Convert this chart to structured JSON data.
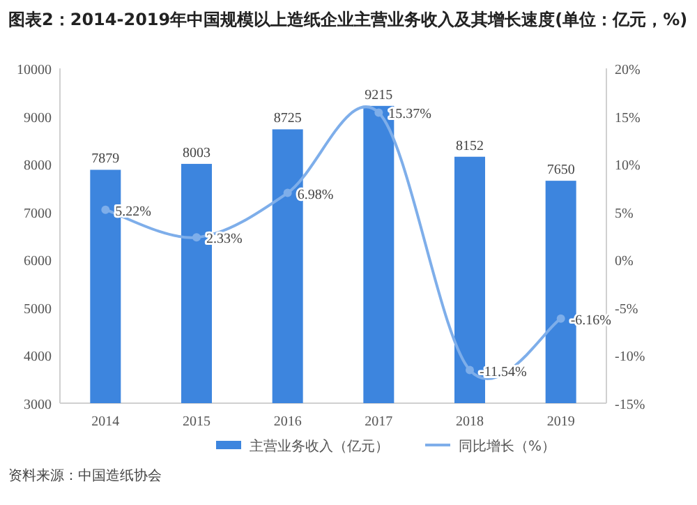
{
  "chart_data": {
    "type": "bar",
    "title": "图表2：2014-2019年中国规模以上造纸企业主营业务收入及其增长速度(单位：亿元，%)",
    "categories": [
      "2014",
      "2015",
      "2016",
      "2017",
      "2018",
      "2019"
    ],
    "series": [
      {
        "name": "主营业务收入（亿元）",
        "color": "#3d85de",
        "values": [
          7879,
          8003,
          8725,
          9215,
          8152,
          7650
        ],
        "data_labels": true
      },
      {
        "name": "同比增长（%）",
        "type": "line",
        "axis": "y2",
        "color": "#7eaeea",
        "marker": "circle",
        "values": [
          5.22,
          2.33,
          6.98,
          15.37,
          -11.54,
          -6.16
        ],
        "value_labels": [
          "5.22%",
          "2.33%",
          "6.98%",
          "15.37%",
          "-11.54%",
          "-6.16%"
        ]
      }
    ],
    "ylim": [
      3000,
      10000
    ],
    "yticks": [
      3000,
      4000,
      5000,
      6000,
      7000,
      8000,
      9000,
      10000
    ],
    "y2lim": [
      -15,
      20
    ],
    "y2ticks": [
      {
        "value": -15,
        "label": "-15%"
      },
      {
        "value": -10,
        "label": "-10%"
      },
      {
        "value": -5,
        "label": "-5%"
      },
      {
        "value": 0,
        "label": "0%"
      },
      {
        "value": 5,
        "label": "5%"
      },
      {
        "value": 10,
        "label": "10%"
      },
      {
        "value": 15,
        "label": "15%"
      },
      {
        "value": 20,
        "label": "20%"
      }
    ],
    "grid": false,
    "legend": "bottom",
    "annotations": [
      "资料来源：中国造纸协会"
    ]
  }
}
